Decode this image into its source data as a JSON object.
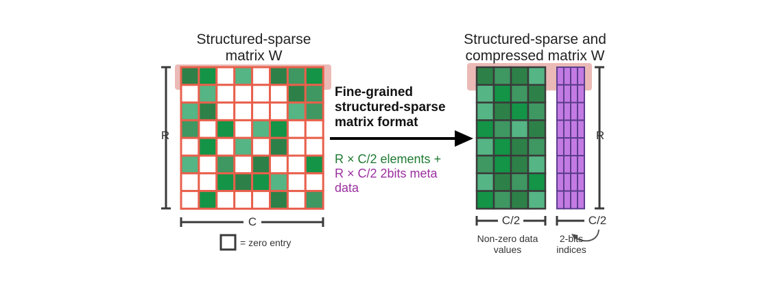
{
  "left": {
    "title": "Structured-sparse\nmatrix W",
    "row_label": "R",
    "col_label": "C",
    "legend_label": "= zero entry",
    "grid": [
      [
        1,
        4,
        0,
        3,
        0,
        1,
        2,
        4
      ],
      [
        0,
        3,
        0,
        0,
        0,
        0,
        1,
        2
      ],
      [
        3,
        1,
        0,
        0,
        0,
        0,
        3,
        2
      ],
      [
        2,
        0,
        4,
        0,
        3,
        4,
        0,
        0
      ],
      [
        0,
        4,
        0,
        3,
        0,
        1,
        0,
        0
      ],
      [
        3,
        0,
        2,
        0,
        1,
        0,
        0,
        4
      ],
      [
        0,
        0,
        4,
        1,
        4,
        3,
        0,
        0
      ],
      [
        0,
        4,
        0,
        0,
        0,
        1,
        0,
        2
      ]
    ]
  },
  "middle": {
    "format_label": "Fine-grained\nstructured-sparse\nmatrix format",
    "elements_text": "R × C/2 elements +",
    "meta_text_line1": "R × C/2 2bits meta",
    "meta_text_line2": "data"
  },
  "right": {
    "title": "Structured-sparse and\ncompressed matrix W",
    "row_label": "R",
    "values_col_label": "C/2",
    "indices_col_label": "C/2",
    "values_caption": "Non-zero data\nvalues",
    "indices_caption": "2-bits\nindices",
    "values_grid": [
      [
        1,
        2,
        1,
        3
      ],
      [
        3,
        4,
        2,
        1
      ],
      [
        3,
        1,
        4,
        2
      ],
      [
        4,
        2,
        3,
        1
      ],
      [
        3,
        4,
        1,
        2
      ],
      [
        2,
        4,
        1,
        3
      ],
      [
        3,
        1,
        2,
        4
      ],
      [
        4,
        2,
        1,
        3
      ]
    ]
  },
  "colors": {
    "grid_line": "#e8604c",
    "dark_line": "#3a3a3a",
    "highlight": "#e9b3ae",
    "purple": "#c37be3",
    "purple_line": "#5b3c8c",
    "greens": [
      "#ffffff",
      "#2d8148",
      "#3f9762",
      "#55b584",
      "#139447"
    ]
  }
}
